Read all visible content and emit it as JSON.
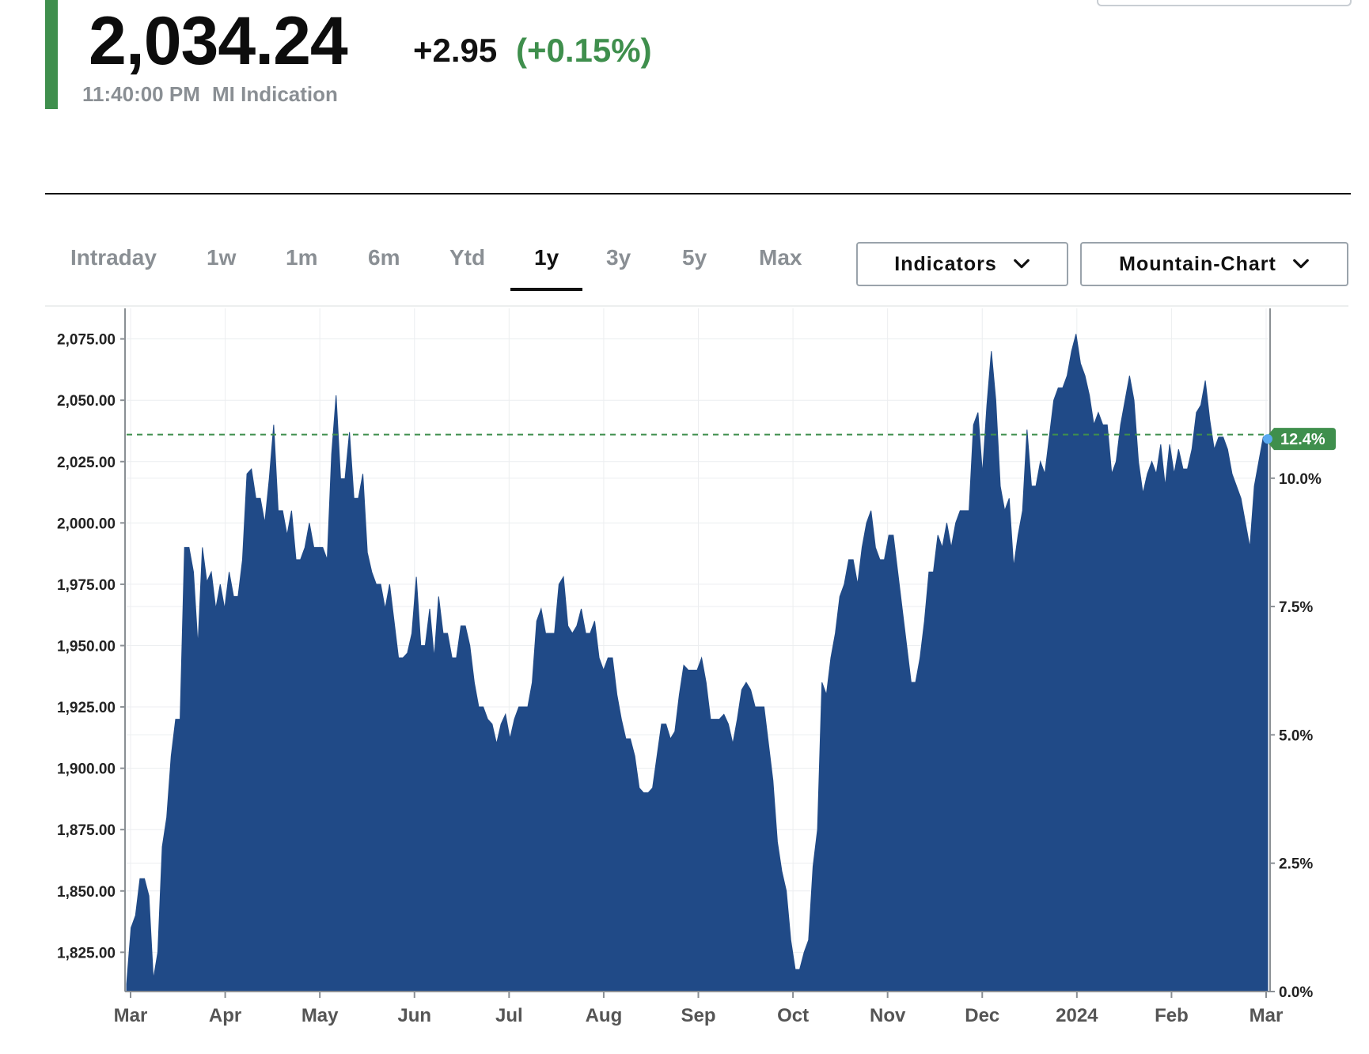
{
  "header": {
    "price": "2,034.24",
    "change": "+2.95",
    "change_pct": "(+0.15%)",
    "time": "11:40:00 PM",
    "source": "MI Indication",
    "accent_color": "#3f8f4d",
    "positive_color": "#3f8f4d"
  },
  "range_tabs": [
    {
      "label": "Intraday",
      "active": false
    },
    {
      "label": "1w",
      "active": false
    },
    {
      "label": "1m",
      "active": false
    },
    {
      "label": "6m",
      "active": false
    },
    {
      "label": "Ytd",
      "active": false
    },
    {
      "label": "1y",
      "active": true
    },
    {
      "label": "3y",
      "active": false
    },
    {
      "label": "5y",
      "active": false
    },
    {
      "label": "Max",
      "active": false
    }
  ],
  "dropdowns": {
    "indicators_label": "Indicators",
    "chart_type_label": "Mountain-Chart",
    "chevron_icon": "chevron-down-icon"
  },
  "chart_data": {
    "type": "area",
    "fill_color": "#204a87",
    "reference_line_color": "#3f8f4d",
    "last_value_badge": "12.4%",
    "last_value_badge_color": "#3f8f4d",
    "last_point_marker_color": "#5aa9f0",
    "y_ticks_left": [
      "2,075.00",
      "2,050.00",
      "2,025.00",
      "2,000.00",
      "1,975.00",
      "1,950.00",
      "1,925.00",
      "1,900.00",
      "1,875.00",
      "1,850.00",
      "1,825.00"
    ],
    "y_ticks_left_values": [
      2075,
      2050,
      2025,
      2000,
      1975,
      1950,
      1925,
      1900,
      1875,
      1850,
      1825
    ],
    "y_ticks_right": [
      "10.0%",
      "7.5%",
      "5.0%",
      "2.5%",
      "0.0%"
    ],
    "y_ticks_right_values": [
      10.0,
      7.5,
      5.0,
      2.5,
      0.0
    ],
    "ylim_left": [
      1809,
      2081
    ],
    "ylim_right": [
      0.0,
      13.0
    ],
    "reference_value": 2036,
    "x_ticks": [
      "Mar",
      "Apr",
      "May",
      "Jun",
      "Jul",
      "Aug",
      "Sep",
      "Oct",
      "Nov",
      "Dec",
      "2024",
      "Feb",
      "Mar"
    ],
    "grid": true,
    "values": [
      1812,
      1835,
      1840,
      1855,
      1855,
      1848,
      1814,
      1825,
      1868,
      1880,
      1905,
      1920,
      1920,
      1990,
      1990,
      1980,
      1950,
      1990,
      1976,
      1980,
      1965,
      1975,
      1965,
      1980,
      1970,
      1970,
      1985,
      2020,
      2022,
      2010,
      2010,
      2000,
      2018,
      2040,
      2005,
      2005,
      1995,
      2005,
      1985,
      1985,
      1990,
      2000,
      1990,
      1990,
      1990,
      1985,
      2028,
      2052,
      2018,
      2018,
      2037,
      2010,
      2010,
      2020,
      1988,
      1980,
      1975,
      1975,
      1965,
      1975,
      1960,
      1945,
      1945,
      1947,
      1955,
      1978,
      1950,
      1950,
      1965,
      1945,
      1970,
      1955,
      1955,
      1945,
      1945,
      1958,
      1958,
      1950,
      1935,
      1925,
      1925,
      1920,
      1918,
      1910,
      1918,
      1922,
      1912,
      1920,
      1925,
      1925,
      1925,
      1935,
      1960,
      1965,
      1955,
      1955,
      1955,
      1975,
      1978,
      1958,
      1955,
      1958,
      1965,
      1955,
      1955,
      1960,
      1945,
      1940,
      1945,
      1945,
      1930,
      1920,
      1912,
      1912,
      1905,
      1892,
      1890,
      1890,
      1892,
      1905,
      1918,
      1918,
      1912,
      1915,
      1930,
      1942,
      1940,
      1940,
      1940,
      1945,
      1935,
      1920,
      1920,
      1920,
      1922,
      1918,
      1910,
      1920,
      1932,
      1935,
      1932,
      1925,
      1925,
      1925,
      1910,
      1895,
      1870,
      1858,
      1850,
      1830,
      1818,
      1818,
      1825,
      1830,
      1860,
      1875,
      1935,
      1930,
      1945,
      1955,
      1970,
      1975,
      1985,
      1985,
      1975,
      1990,
      2000,
      2005,
      1990,
      1985,
      1985,
      1995,
      1995,
      1980,
      1965,
      1950,
      1935,
      1935,
      1945,
      1960,
      1980,
      1980,
      1995,
      1990,
      2000,
      1990,
      2000,
      2005,
      2005,
      2005,
      2040,
      2045,
      2020,
      2048,
      2070,
      2050,
      2015,
      2005,
      2010,
      1982,
      1995,
      2005,
      2038,
      2015,
      2015,
      2025,
      2020,
      2035,
      2050,
      2055,
      2055,
      2060,
      2070,
      2077,
      2065,
      2060,
      2052,
      2040,
      2045,
      2040,
      2040,
      2020,
      2025,
      2040,
      2050,
      2060,
      2050,
      2025,
      2012,
      2020,
      2025,
      2020,
      2032,
      2015,
      2032,
      2020,
      2030,
      2022,
      2022,
      2030,
      2045,
      2048,
      2058,
      2042,
      2030,
      2035,
      2035,
      2030,
      2020,
      2015,
      2010,
      2000,
      1990,
      2015,
      2025,
      2035,
      2034.24
    ]
  }
}
